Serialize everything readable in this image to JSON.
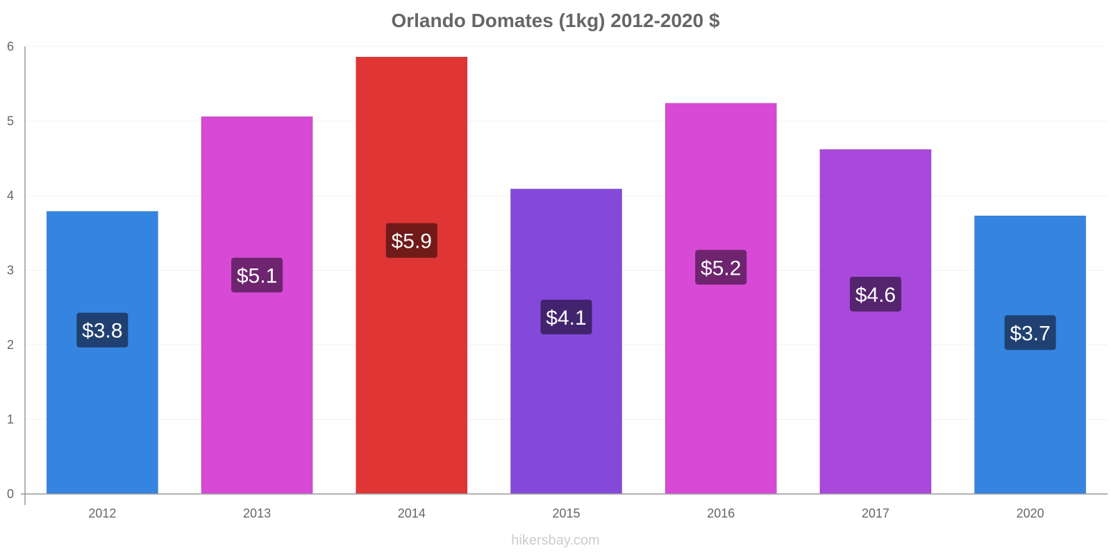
{
  "chart_data": {
    "type": "bar",
    "title": "Orlando Domates (1kg) 2012-2020 $",
    "categories": [
      "2012",
      "2013",
      "2014",
      "2015",
      "2016",
      "2017",
      "2020"
    ],
    "values": [
      3.79,
      5.06,
      5.86,
      4.09,
      5.24,
      4.62,
      3.73
    ],
    "data_labels": [
      "$3.8",
      "$5.1",
      "$5.9",
      "$4.1",
      "$5.2",
      "$4.6",
      "$3.7"
    ],
    "bar_colors": [
      "#3584e0",
      "#d64ad6",
      "#e03535",
      "#8449db",
      "#d64ad6",
      "#a849db",
      "#3584e0"
    ],
    "label_bg_colors": [
      "#1f4070",
      "#6e246e",
      "#701a1a",
      "#42246e",
      "#6e246e",
      "#54246e",
      "#1f4070"
    ],
    "ylim": [
      0,
      6
    ],
    "yticks": [
      0,
      1,
      2,
      3,
      4,
      5,
      6
    ],
    "grid": true,
    "xlabel": "",
    "ylabel": ""
  },
  "watermark": "hikersbay.com"
}
